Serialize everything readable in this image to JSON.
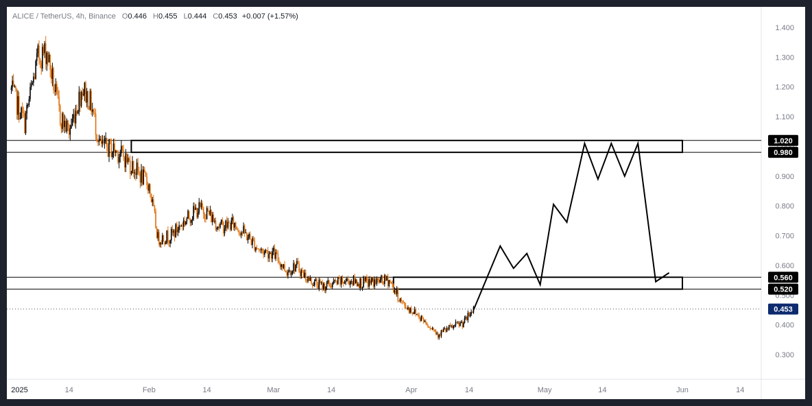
{
  "legend": {
    "symbol": "ALICE / TetherUS, 4h, Binance",
    "o_label": "O",
    "o_value": "0.446",
    "h_label": "H",
    "h_value": "0.455",
    "l_label": "L",
    "l_value": "0.444",
    "c_label": "C",
    "c_value": "0.453",
    "change": "+0.007 (+1.57%)"
  },
  "colors": {
    "background": "#ffffff",
    "frame": "#1e222d",
    "up_candle": "#000000",
    "down_candle": "#e0700a",
    "badge_level": "#000000",
    "badge_price": "#0d2a6e",
    "axis_text": "#787b86"
  },
  "chart_data": {
    "type": "candlestick",
    "title": "ALICE / TetherUS, 4h, Binance",
    "ylim": [
      0.22,
      1.45
    ],
    "y_ticks": [
      "1.400",
      "1.300",
      "1.200",
      "1.100",
      "1.000",
      "0.900",
      "0.800",
      "0.700",
      "0.600",
      "0.500",
      "0.400",
      "0.300"
    ],
    "x_ticks": [
      {
        "label": "2025",
        "major": true
      },
      {
        "label": "14",
        "major": false
      },
      {
        "label": "Feb",
        "major": false
      },
      {
        "label": "14",
        "major": false
      },
      {
        "label": "Mar",
        "major": false
      },
      {
        "label": "14",
        "major": false
      },
      {
        "label": "Apr",
        "major": false
      },
      {
        "label": "14",
        "major": false
      },
      {
        "label": "May",
        "major": false
      },
      {
        "label": "14",
        "major": false
      },
      {
        "label": "Jun",
        "major": false
      },
      {
        "label": "14",
        "major": false
      }
    ],
    "price_path": {
      "dates": [
        "2025-01-01",
        "2025-01-04",
        "2025-01-07",
        "2025-01-09",
        "2025-01-12",
        "2025-01-14",
        "2025-01-17",
        "2025-01-19",
        "2025-01-21",
        "2025-01-24",
        "2025-01-26",
        "2025-01-29",
        "2025-02-01",
        "2025-02-03",
        "2025-02-06",
        "2025-02-09",
        "2025-02-12",
        "2025-02-14",
        "2025-02-17",
        "2025-02-20",
        "2025-02-23",
        "2025-02-26",
        "2025-03-01",
        "2025-03-04",
        "2025-03-06",
        "2025-03-09",
        "2025-03-12",
        "2025-03-15",
        "2025-03-18",
        "2025-03-21",
        "2025-03-24",
        "2025-03-27",
        "2025-03-30",
        "2025-04-02",
        "2025-04-05",
        "2025-04-07",
        "2025-04-10",
        "2025-04-13",
        "2025-04-15"
      ],
      "close": [
        1.19,
        1.08,
        1.3,
        1.32,
        1.1,
        1.05,
        1.2,
        1.14,
        1.0,
        0.99,
        0.97,
        0.92,
        0.87,
        0.69,
        0.7,
        0.75,
        0.79,
        0.78,
        0.73,
        0.74,
        0.7,
        0.65,
        0.64,
        0.58,
        0.6,
        0.55,
        0.53,
        0.54,
        0.55,
        0.54,
        0.545,
        0.55,
        0.47,
        0.44,
        0.4,
        0.37,
        0.39,
        0.41,
        0.453
      ]
    },
    "zones": [
      {
        "top": 1.02,
        "bottom": 0.98,
        "from": "2025-01-28",
        "to": "2025-06-01"
      },
      {
        "top": 0.56,
        "bottom": 0.52,
        "from": "2025-03-28",
        "to": "2025-06-01"
      }
    ],
    "projection": {
      "dates": [
        "2025-04-15",
        "2025-04-21",
        "2025-04-24",
        "2025-04-27",
        "2025-04-30",
        "2025-05-03",
        "2025-05-06",
        "2025-05-10",
        "2025-05-13",
        "2025-05-16",
        "2025-05-19",
        "2025-05-22",
        "2025-05-26",
        "2025-05-29"
      ],
      "values": [
        0.45,
        0.665,
        0.59,
        0.64,
        0.535,
        0.805,
        0.745,
        1.01,
        0.89,
        1.01,
        0.9,
        1.01,
        0.545,
        0.575
      ]
    },
    "price_levels": [
      {
        "label": "1.020",
        "value": 1.02,
        "style": "level"
      },
      {
        "label": "0.980",
        "value": 0.98,
        "style": "level"
      },
      {
        "label": "0.560",
        "value": 0.56,
        "style": "level"
      },
      {
        "label": "0.520",
        "value": 0.52,
        "style": "level"
      },
      {
        "label": "0.453",
        "value": 0.453,
        "style": "price"
      }
    ]
  }
}
